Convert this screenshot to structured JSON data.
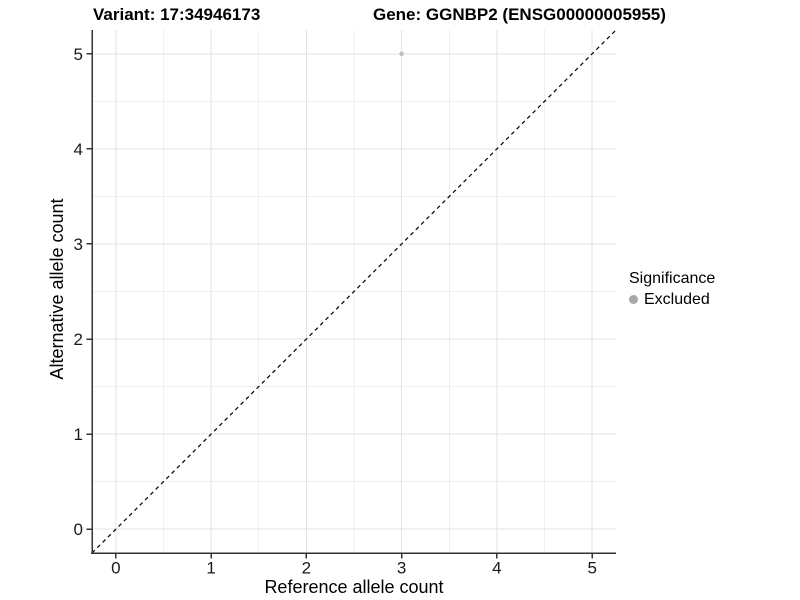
{
  "titles": {
    "variant": "Variant: 17:34946173",
    "gene": "Gene: GGNBP2 (ENSG00000005955)"
  },
  "chart_data": {
    "type": "scatter",
    "title": "Variant: 17:34946173    Gene: GGNBP2 (ENSG00000005955)",
    "xlabel": "Reference allele count",
    "ylabel": "Alternative allele count",
    "xlim": [
      -0.25,
      5.25
    ],
    "ylim": [
      -0.25,
      5.25
    ],
    "x_ticks": [
      0,
      1,
      2,
      3,
      4,
      5
    ],
    "y_ticks": [
      0,
      1,
      2,
      3,
      4,
      5
    ],
    "x_minor_ticks": [
      0.5,
      1.5,
      2.5,
      3.5,
      4.5
    ],
    "y_minor_ticks": [
      0.5,
      1.5,
      2.5,
      3.5,
      4.5
    ],
    "grid": "major+minor",
    "background_color": "#ffffff",
    "major_grid_color": "#e3e3e3",
    "minor_grid_color": "#efefef",
    "identity_line": {
      "style": "dashed",
      "color": "#000000",
      "slope": 1,
      "intercept": 0
    },
    "series": [
      {
        "name": "Excluded",
        "color": "#bdbdbd",
        "point_radius": 2.3,
        "points": [
          {
            "x": 3,
            "y": 5
          }
        ]
      }
    ],
    "legend": {
      "title": "Significance",
      "position": "right",
      "items": [
        {
          "label": "Excluded",
          "color": "#a8a8a8"
        }
      ]
    }
  }
}
